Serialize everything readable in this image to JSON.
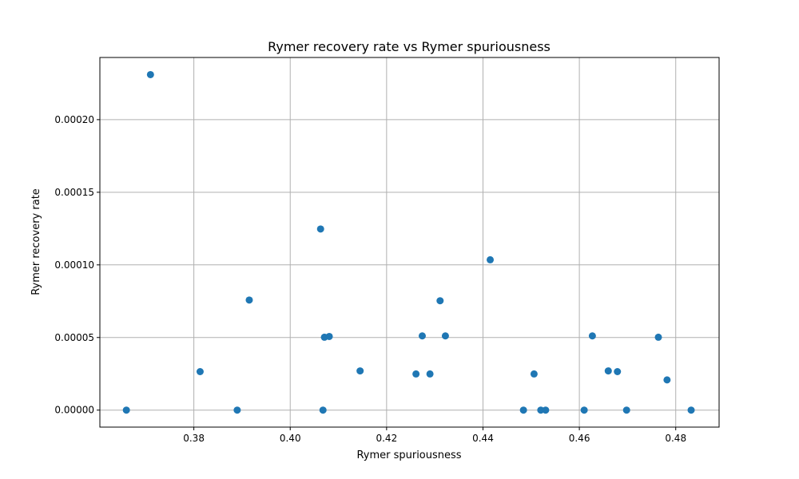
{
  "chart_data": {
    "type": "scatter",
    "title": "Rymer recovery rate vs Rymer spuriousness",
    "xlabel": "Rymer spuriousness",
    "ylabel": "Rymer recovery rate",
    "xlim": [
      0.3605,
      0.489
    ],
    "ylim": [
      -1.17e-05,
      0.0002428
    ],
    "xticks": [
      0.38,
      0.4,
      0.42,
      0.44,
      0.46,
      0.48
    ],
    "xtick_labels": [
      "0.38",
      "0.40",
      "0.42",
      "0.44",
      "0.46",
      "0.48"
    ],
    "yticks": [
      0.0,
      5e-05,
      0.0001,
      0.00015,
      0.0002
    ],
    "ytick_labels": [
      "0.00000",
      "0.00005",
      "0.00010",
      "0.00015",
      "0.00020"
    ],
    "grid": true,
    "color": "#1f77b4",
    "points": [
      {
        "x": 0.366,
        "y": 0.0
      },
      {
        "x": 0.371,
        "y": 0.000231
      },
      {
        "x": 0.3813,
        "y": 2.65e-05
      },
      {
        "x": 0.389,
        "y": 0.0
      },
      {
        "x": 0.3915,
        "y": 7.58e-05
      },
      {
        "x": 0.4063,
        "y": 0.0001247
      },
      {
        "x": 0.4068,
        "y": 0.0
      },
      {
        "x": 0.4071,
        "y": 5.02e-05
      },
      {
        "x": 0.4081,
        "y": 5.07e-05
      },
      {
        "x": 0.4145,
        "y": 2.7e-05
      },
      {
        "x": 0.4261,
        "y": 2.49e-05
      },
      {
        "x": 0.4274,
        "y": 5.11e-05
      },
      {
        "x": 0.429,
        "y": 2.49e-05
      },
      {
        "x": 0.4311,
        "y": 7.53e-05
      },
      {
        "x": 0.4322,
        "y": 5.11e-05
      },
      {
        "x": 0.4415,
        "y": 0.0001035
      },
      {
        "x": 0.4484,
        "y": 0.0
      },
      {
        "x": 0.4506,
        "y": 2.49e-05
      },
      {
        "x": 0.452,
        "y": 0.0
      },
      {
        "x": 0.453,
        "y": 0.0
      },
      {
        "x": 0.461,
        "y": 0.0
      },
      {
        "x": 0.4627,
        "y": 5.11e-05
      },
      {
        "x": 0.466,
        "y": 2.7e-05
      },
      {
        "x": 0.4679,
        "y": 2.65e-05
      },
      {
        "x": 0.4698,
        "y": 0.0
      },
      {
        "x": 0.4764,
        "y": 5.02e-05
      },
      {
        "x": 0.4782,
        "y": 2.08e-05
      },
      {
        "x": 0.4832,
        "y": 0.0
      }
    ]
  }
}
